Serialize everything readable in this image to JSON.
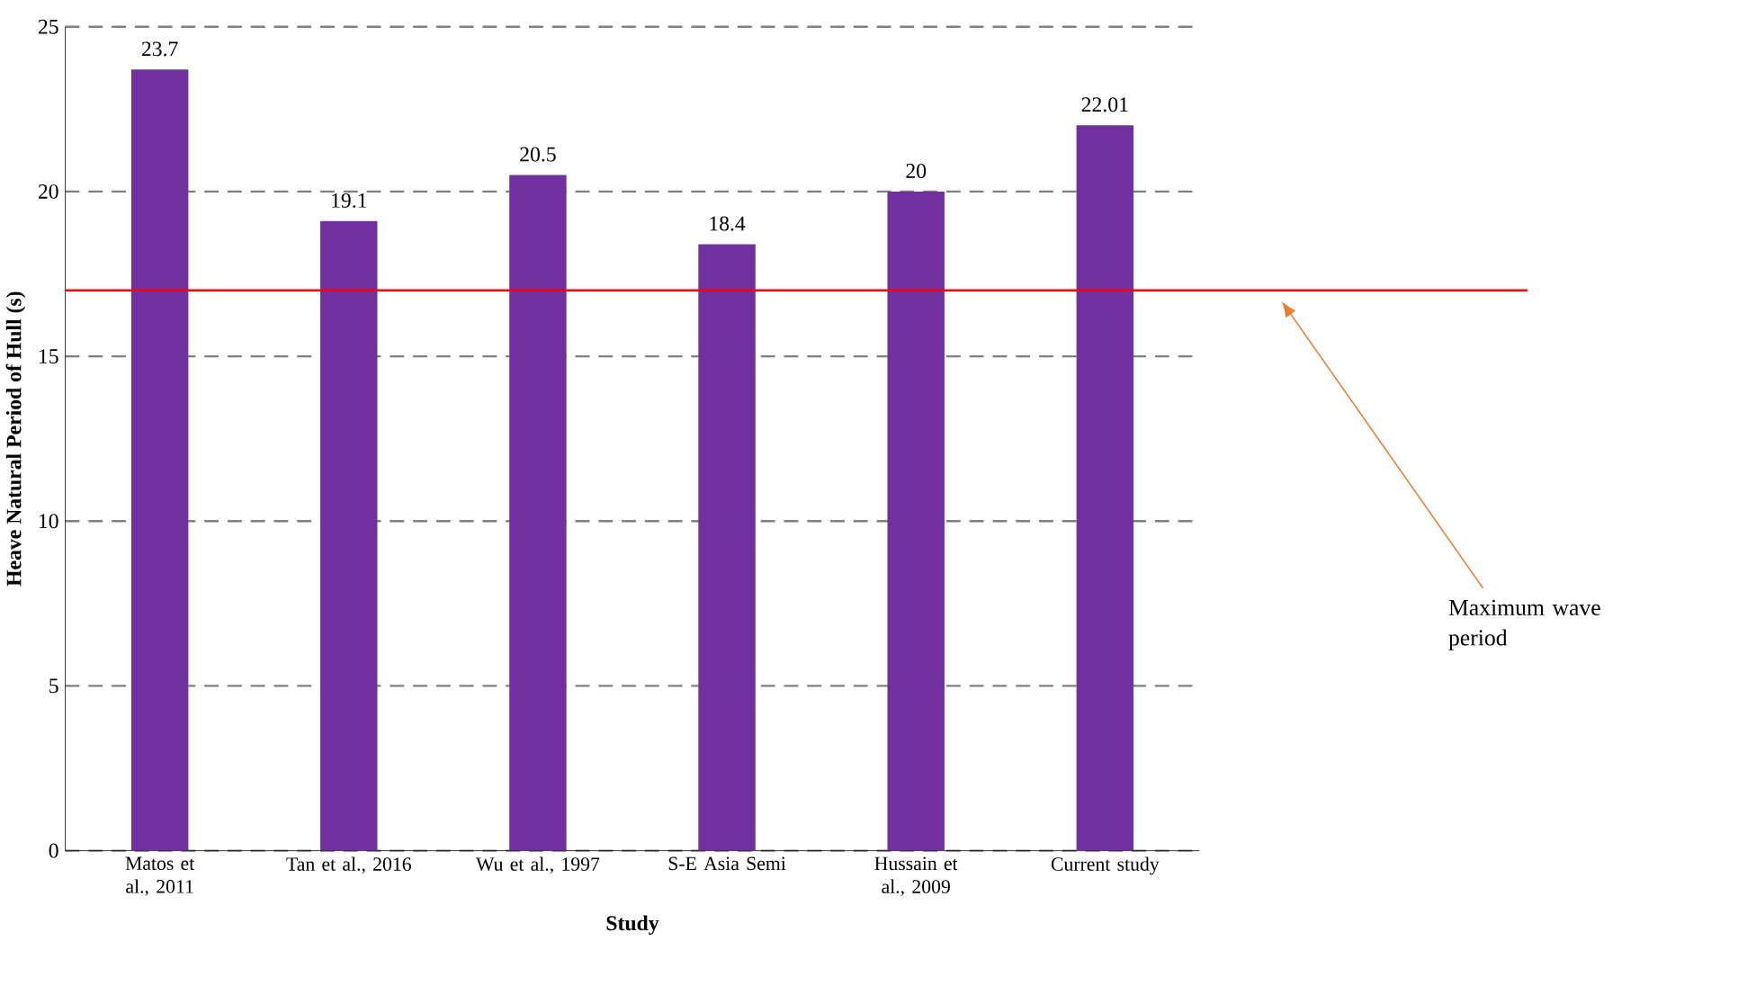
{
  "chart_data": {
    "type": "bar",
    "xlabel": "Study",
    "ylabel": "Heave Natural Period of Hull (s)",
    "categories": [
      "Matos et al., 2011",
      "Tan et al., 2016",
      "Wu et al., 1997",
      "S-E Asia Semi",
      "Hussain et al., 2009",
      "Current study"
    ],
    "values": [
      23.7,
      19.1,
      20.5,
      18.4,
      20,
      22.01
    ],
    "color": "#7030a0",
    "ylim": [
      0,
      25
    ],
    "yticks": [
      0,
      5,
      10,
      15,
      20,
      25
    ],
    "grid": "y",
    "data_labels": true,
    "annotations": [
      "Maximum wave period"
    ],
    "ref_lines": [
      {
        "axis": "y",
        "value": 17,
        "color": "#ff0000"
      }
    ]
  }
}
